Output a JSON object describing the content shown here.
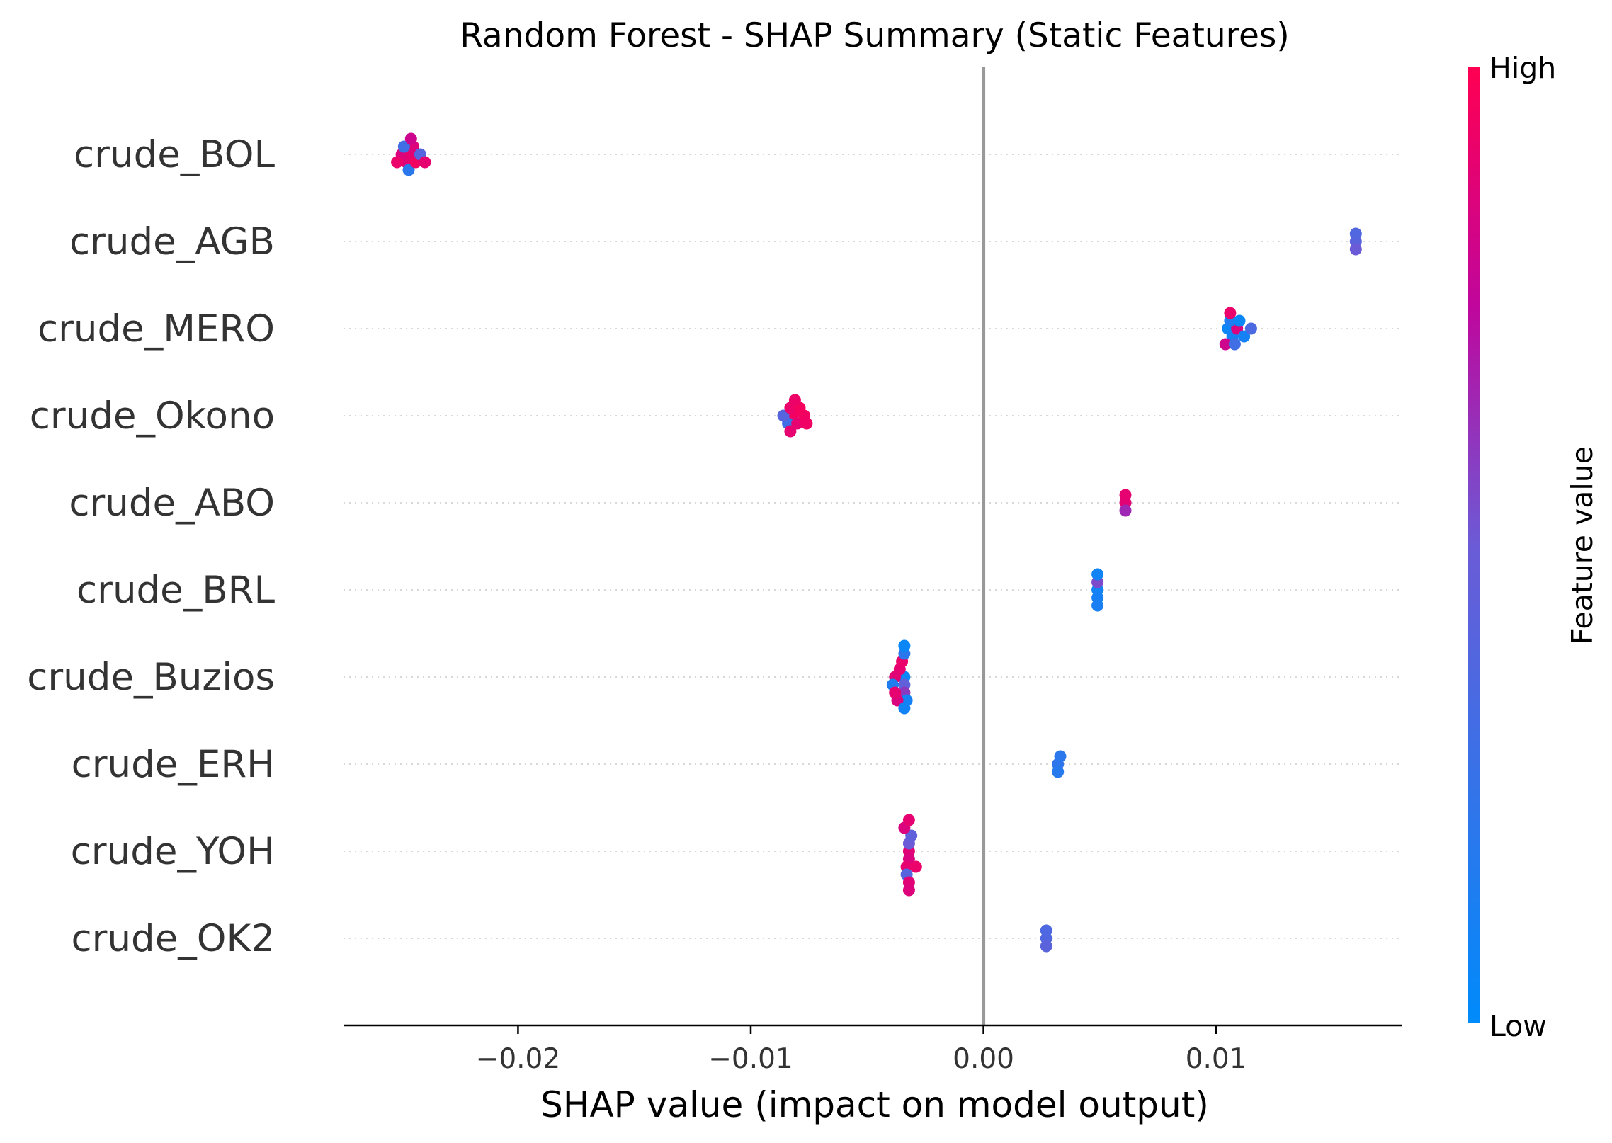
{
  "chart_data": {
    "type": "scatter",
    "subtype": "shap-beeswarm",
    "title": "Random Forest - SHAP Summary (Static Features)",
    "xlabel": "SHAP value (impact on model output)",
    "xlim": [
      -0.0275,
      0.018
    ],
    "xticks": [
      -0.02,
      -0.01,
      0.0,
      0.01
    ],
    "xtick_labels": [
      "−0.02",
      "−0.01",
      "0.00",
      "0.01"
    ],
    "zero_line": 0.0,
    "colorbar": {
      "title": "Feature value",
      "high_label": "High",
      "low_label": "Low",
      "high_color": "#ff0052",
      "low_color": "#008bfb"
    },
    "features": [
      {
        "name": "crude_BOL",
        "points": [
          {
            "x": -0.025,
            "v": 0.85
          },
          {
            "x": -0.0248,
            "v": 0.88
          },
          {
            "x": -0.0246,
            "v": 0.9
          },
          {
            "x": -0.0245,
            "v": 0.86
          },
          {
            "x": -0.0252,
            "v": 0.92
          },
          {
            "x": -0.0249,
            "v": 0.3
          },
          {
            "x": -0.0247,
            "v": 0.2
          },
          {
            "x": -0.0244,
            "v": 0.95
          },
          {
            "x": -0.0242,
            "v": 0.4
          },
          {
            "x": -0.024,
            "v": 0.9
          },
          {
            "x": -0.0246,
            "v": 0.8
          }
        ]
      },
      {
        "name": "crude_AGB",
        "points": [
          {
            "x": 0.016,
            "v": 0.42
          },
          {
            "x": 0.016,
            "v": 0.5
          },
          {
            "x": 0.016,
            "v": 0.38
          }
        ]
      },
      {
        "name": "crude_MERO",
        "points": [
          {
            "x": 0.0105,
            "v": 0.05
          },
          {
            "x": 0.0107,
            "v": 0.1
          },
          {
            "x": 0.0109,
            "v": 0.85
          },
          {
            "x": 0.0106,
            "v": 0.15
          },
          {
            "x": 0.0104,
            "v": 0.8
          },
          {
            "x": 0.0108,
            "v": 0.3
          },
          {
            "x": 0.011,
            "v": 0.05
          },
          {
            "x": 0.0112,
            "v": 0.1
          },
          {
            "x": 0.0115,
            "v": 0.35
          },
          {
            "x": 0.0106,
            "v": 0.92
          }
        ]
      },
      {
        "name": "crude_Okono",
        "points": [
          {
            "x": -0.0082,
            "v": 0.95
          },
          {
            "x": -0.0084,
            "v": 0.3
          },
          {
            "x": -0.008,
            "v": 0.9
          },
          {
            "x": -0.0077,
            "v": 0.95
          },
          {
            "x": -0.0086,
            "v": 0.4
          },
          {
            "x": -0.0083,
            "v": 0.92
          },
          {
            "x": -0.0079,
            "v": 0.96
          },
          {
            "x": -0.0076,
            "v": 0.94
          },
          {
            "x": -0.0083,
            "v": 0.9
          },
          {
            "x": -0.0081,
            "v": 0.93
          }
        ]
      },
      {
        "name": "crude_ABO",
        "points": [
          {
            "x": 0.0061,
            "v": 0.88
          },
          {
            "x": 0.0061,
            "v": 0.65
          },
          {
            "x": 0.0061,
            "v": 0.9
          }
        ]
      },
      {
        "name": "crude_BRL",
        "points": [
          {
            "x": 0.0049,
            "v": 0.08
          },
          {
            "x": 0.0049,
            "v": 0.1
          },
          {
            "x": 0.0049,
            "v": 0.55
          },
          {
            "x": 0.0049,
            "v": 0.12
          },
          {
            "x": 0.0049,
            "v": 0.08
          }
        ]
      },
      {
        "name": "crude_Buzios",
        "points": [
          {
            "x": -0.0034,
            "v": 0.05
          },
          {
            "x": -0.0034,
            "v": 0.45
          },
          {
            "x": -0.0036,
            "v": 0.9
          },
          {
            "x": -0.0038,
            "v": 0.88
          },
          {
            "x": -0.0034,
            "v": 0.6
          },
          {
            "x": -0.0039,
            "v": 0.15
          },
          {
            "x": -0.0035,
            "v": 0.92
          },
          {
            "x": -0.0033,
            "v": 0.1
          },
          {
            "x": -0.0037,
            "v": 0.85
          },
          {
            "x": -0.0034,
            "v": 0.2
          },
          {
            "x": -0.0038,
            "v": 0.9
          },
          {
            "x": -0.0034,
            "v": 0.08
          },
          {
            "x": -0.0034,
            "v": 0.05
          }
        ]
      },
      {
        "name": "crude_ERH",
        "points": [
          {
            "x": 0.0032,
            "v": 0.22
          },
          {
            "x": 0.0032,
            "v": 0.18
          },
          {
            "x": 0.0033,
            "v": 0.2
          }
        ]
      },
      {
        "name": "crude_YOH",
        "points": [
          {
            "x": -0.0032,
            "v": 0.88
          },
          {
            "x": -0.0032,
            "v": 0.85
          },
          {
            "x": -0.0032,
            "v": 0.5
          },
          {
            "x": -0.0033,
            "v": 0.9
          },
          {
            "x": -0.0031,
            "v": 0.45
          },
          {
            "x": -0.0033,
            "v": 0.4
          },
          {
            "x": -0.0029,
            "v": 0.92
          },
          {
            "x": -0.0034,
            "v": 0.85
          },
          {
            "x": -0.0032,
            "v": 0.88
          },
          {
            "x": -0.0032,
            "v": 0.9
          },
          {
            "x": -0.0032,
            "v": 0.86
          }
        ]
      },
      {
        "name": "crude_OK2",
        "points": [
          {
            "x": 0.0027,
            "v": 0.38
          },
          {
            "x": 0.0027,
            "v": 0.42
          },
          {
            "x": 0.0027,
            "v": 0.36
          }
        ]
      }
    ]
  }
}
